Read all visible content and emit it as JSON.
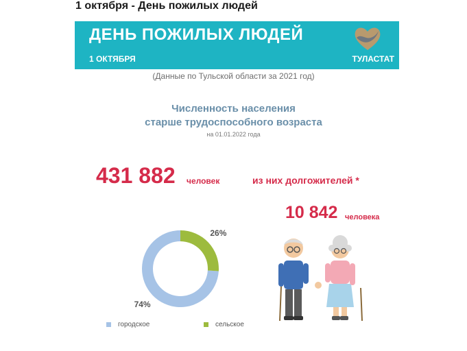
{
  "page": {
    "heading": "1 октября - День пожилых людей"
  },
  "banner": {
    "title": "ДЕНЬ ПОЖИЛЫХ ЛЮДЕЙ",
    "date": "1 ОКТЯБРЯ",
    "brand": "ТУЛАСТАТ",
    "color": "#1eb4c3"
  },
  "infographic": {
    "data_note": "(Данные по Тульской области за 2021 год)",
    "section_title_line1": "Численность населения",
    "section_title_line2": "старше трудоспособного возраста",
    "section_date": "на 01.01.2022 года",
    "total_number": "431 882",
    "total_unit": "человек",
    "longevity_label": "из них долгожителей *",
    "longevity_number": "10 842",
    "longevity_unit": "человека",
    "accent_color": "#d52b4a"
  },
  "chart_data": {
    "type": "pie",
    "variant": "donut",
    "categories": [
      "городское",
      "сельское"
    ],
    "values": [
      74,
      26
    ],
    "labels": [
      "74%",
      "26%"
    ],
    "colors": [
      "#a6c3e6",
      "#9dbb3e"
    ],
    "legend_placement": "bottom"
  }
}
